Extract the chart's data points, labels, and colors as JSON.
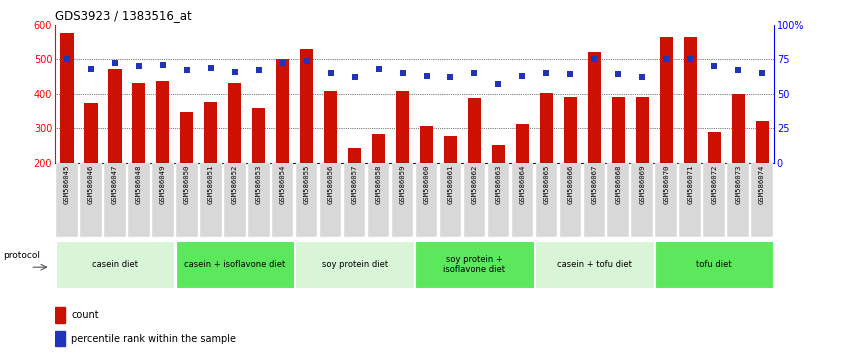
{
  "title": "GDS3923 / 1383516_at",
  "samples": [
    "GSM586045",
    "GSM586046",
    "GSM586047",
    "GSM586048",
    "GSM586049",
    "GSM586050",
    "GSM586051",
    "GSM586052",
    "GSM586053",
    "GSM586054",
    "GSM586055",
    "GSM586056",
    "GSM586057",
    "GSM586058",
    "GSM586059",
    "GSM586060",
    "GSM586061",
    "GSM586062",
    "GSM586063",
    "GSM586064",
    "GSM586065",
    "GSM586066",
    "GSM586067",
    "GSM586068",
    "GSM586069",
    "GSM586070",
    "GSM586071",
    "GSM586072",
    "GSM586073",
    "GSM586074"
  ],
  "counts": [
    575,
    372,
    472,
    430,
    437,
    348,
    375,
    430,
    360,
    500,
    530,
    408,
    242,
    285,
    407,
    308,
    278,
    388,
    252,
    313,
    401,
    392,
    522,
    392,
    390,
    565,
    565,
    290,
    400,
    322
  ],
  "percentiles": [
    75,
    68,
    72,
    70,
    71,
    67,
    69,
    66,
    67,
    72,
    74,
    65,
    62,
    68,
    65,
    63,
    62,
    65,
    57,
    63,
    65,
    64,
    75,
    64,
    62,
    75,
    75,
    70,
    67,
    65
  ],
  "groups": [
    {
      "label": "casein diet",
      "start": 0,
      "end": 5,
      "color": "#d8f5d8"
    },
    {
      "label": "casein + isoflavone diet",
      "start": 5,
      "end": 10,
      "color": "#5ce85c"
    },
    {
      "label": "soy protein diet",
      "start": 10,
      "end": 15,
      "color": "#d8f5d8"
    },
    {
      "label": "soy protein +\nisoflavone diet",
      "start": 15,
      "end": 20,
      "color": "#5ce85c"
    },
    {
      "label": "casein + tofu diet",
      "start": 20,
      "end": 25,
      "color": "#d8f5d8"
    },
    {
      "label": "tofu diet",
      "start": 25,
      "end": 30,
      "color": "#5ce85c"
    }
  ],
  "bar_color": "#cc1100",
  "dot_color": "#2233bb",
  "ylim_left": [
    200,
    600
  ],
  "ylim_right": [
    0,
    100
  ],
  "yticks_left": [
    200,
    300,
    400,
    500,
    600
  ],
  "yticks_right": [
    0,
    25,
    50,
    75,
    100
  ],
  "ytick_labels_right": [
    "0",
    "25",
    "50",
    "75",
    "100%"
  ],
  "bg_color": "#ffffff",
  "tick_bg_color": "#d8d8d8"
}
